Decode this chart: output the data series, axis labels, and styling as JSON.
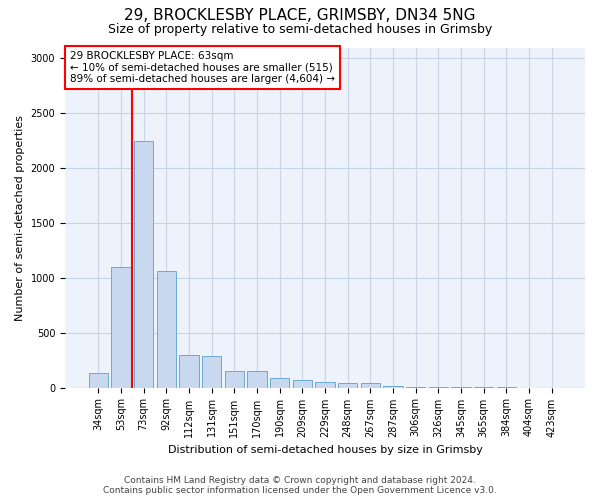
{
  "title_line1": "29, BROCKLESBY PLACE, GRIMSBY, DN34 5NG",
  "title_line2": "Size of property relative to semi-detached houses in Grimsby",
  "xlabel": "Distribution of semi-detached houses by size in Grimsby",
  "ylabel": "Number of semi-detached properties",
  "annotation_title": "29 BROCKLESBY PLACE: 63sqm",
  "annotation_line2": "← 10% of semi-detached houses are smaller (515)",
  "annotation_line3": "89% of semi-detached houses are larger (4,604) →",
  "footer_line1": "Contains HM Land Registry data © Crown copyright and database right 2024.",
  "footer_line2": "Contains public sector information licensed under the Open Government Licence v3.0.",
  "bar_categories": [
    "34sqm",
    "53sqm",
    "73sqm",
    "92sqm",
    "112sqm",
    "131sqm",
    "151sqm",
    "170sqm",
    "190sqm",
    "209sqm",
    "229sqm",
    "248sqm",
    "267sqm",
    "287sqm",
    "306sqm",
    "326sqm",
    "345sqm",
    "365sqm",
    "384sqm",
    "404sqm",
    "423sqm"
  ],
  "bar_values": [
    130,
    1100,
    2250,
    1060,
    295,
    290,
    155,
    155,
    90,
    70,
    50,
    45,
    40,
    10,
    5,
    3,
    2,
    1,
    1,
    0,
    0
  ],
  "bar_color": "#c8d9ef",
  "bar_edge_color": "#6aaad4",
  "marker_color": "red",
  "ylim": [
    0,
    3100
  ],
  "yticks": [
    0,
    500,
    1000,
    1500,
    2000,
    2500,
    3000
  ],
  "grid_color": "#c8d4e8",
  "bg_color": "#edf2fb",
  "annotation_box_color": "white",
  "annotation_box_edge": "red",
  "title1_fontsize": 11,
  "title2_fontsize": 9,
  "axis_label_fontsize": 8,
  "tick_fontsize": 7,
  "annotation_fontsize": 7.5,
  "footer_fontsize": 6.5
}
